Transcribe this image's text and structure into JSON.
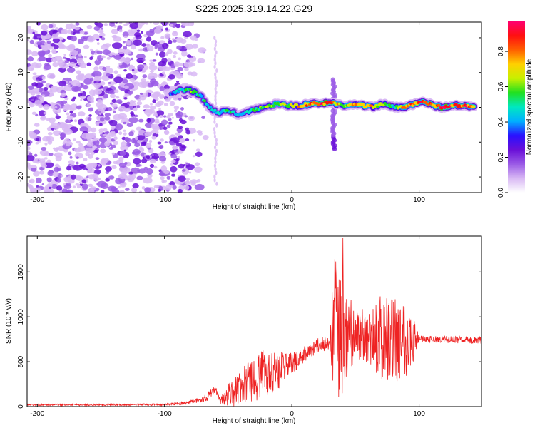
{
  "title": "S225.2025.319.14.22.G29",
  "chart_data": [
    {
      "type": "heatmap",
      "title": "S225.2025.319.14.22.G29",
      "xlabel": "Height of straight line (km)",
      "ylabel": "Frequency (Hz)",
      "xlim": [
        -208,
        149
      ],
      "ylim": [
        -24.5,
        24.5
      ],
      "x_ticks": [
        -200,
        -100,
        0,
        100
      ],
      "x_tick_labels": [
        "-200",
        "-100",
        "0",
        "100"
      ],
      "y_ticks": [
        -20,
        -10,
        0,
        10,
        20
      ],
      "y_tick_labels": [
        "-20",
        "-10",
        "0",
        "10",
        "20"
      ],
      "colorbar": {
        "label": "Normalized spectral amplitude",
        "range": [
          0,
          0.97
        ],
        "ticks": [
          0.0,
          0.2,
          0.4,
          0.6,
          0.8
        ],
        "tick_labels": [
          "0.0",
          "0.2",
          "0.4",
          "0.6",
          "0.8"
        ],
        "colormap": [
          "#ffffff",
          "#d8b8f4",
          "#9a5ae6",
          "#6a10d8",
          "#2a10ff",
          "#00b0ff",
          "#00e8c0",
          "#20e020",
          "#c8f000",
          "#ffd000",
          "#ff6000",
          "#ff1010",
          "#ff0070"
        ]
      },
      "noise_region_x": [
        -208,
        -90
      ],
      "ridge": [
        {
          "x": -95,
          "y": 3.5,
          "v": 0.35
        },
        {
          "x": -88,
          "y": 5.0,
          "v": 0.45
        },
        {
          "x": -80,
          "y": 5.0,
          "v": 0.6
        },
        {
          "x": -72,
          "y": 3.5,
          "v": 0.5
        },
        {
          "x": -65,
          "y": 0.0,
          "v": 0.45
        },
        {
          "x": -58,
          "y": -1.5,
          "v": 0.45
        },
        {
          "x": -50,
          "y": -1.0,
          "v": 0.5
        },
        {
          "x": -42,
          "y": -2.0,
          "v": 0.4
        },
        {
          "x": -35,
          "y": -1.5,
          "v": 0.45
        },
        {
          "x": -28,
          "y": -0.5,
          "v": 0.55
        },
        {
          "x": -20,
          "y": 0.0,
          "v": 0.6
        },
        {
          "x": -12,
          "y": 1.0,
          "v": 0.65
        },
        {
          "x": -4,
          "y": 0.5,
          "v": 0.6
        },
        {
          "x": 5,
          "y": 0.5,
          "v": 0.7
        },
        {
          "x": 14,
          "y": 1.0,
          "v": 0.8
        },
        {
          "x": 22,
          "y": 1.0,
          "v": 0.9
        },
        {
          "x": 30,
          "y": 1.5,
          "v": 0.85
        },
        {
          "x": 40,
          "y": 0.5,
          "v": 0.6
        },
        {
          "x": 48,
          "y": 1.0,
          "v": 0.7
        },
        {
          "x": 56,
          "y": 0.5,
          "v": 0.75
        },
        {
          "x": 64,
          "y": 0.0,
          "v": 0.7
        },
        {
          "x": 72,
          "y": 1.0,
          "v": 0.6
        },
        {
          "x": 80,
          "y": 0.0,
          "v": 0.45
        },
        {
          "x": 88,
          "y": 0.0,
          "v": 0.75
        },
        {
          "x": 96,
          "y": 1.0,
          "v": 0.8
        },
        {
          "x": 104,
          "y": 1.5,
          "v": 0.85
        },
        {
          "x": 112,
          "y": 0.5,
          "v": 0.8
        },
        {
          "x": 120,
          "y": 0.0,
          "v": 0.9
        },
        {
          "x": 128,
          "y": 0.5,
          "v": 0.8
        },
        {
          "x": 136,
          "y": 0.5,
          "v": 0.85
        },
        {
          "x": 144,
          "y": 0.0,
          "v": 0.8
        }
      ],
      "features": [
        {
          "x": 33,
          "y_from": -12,
          "y_to": 8,
          "note": "vertical streak"
        },
        {
          "x": -60,
          "y_from": -22,
          "y_to": 20,
          "note": "faint vertical streak"
        }
      ]
    },
    {
      "type": "line",
      "xlabel": "Height of straight line (km)",
      "ylabel": "SNR (10 * v/v)",
      "xlim": [
        -208,
        149
      ],
      "ylim": [
        0,
        1900
      ],
      "x_ticks": [
        -200,
        -100,
        0,
        100
      ],
      "x_tick_labels": [
        "-200",
        "-100",
        "0",
        "100"
      ],
      "y_ticks": [
        0,
        500,
        1000,
        1500
      ],
      "y_tick_labels": [
        "0",
        "500",
        "1000",
        "1500"
      ],
      "color": "#ee2222",
      "series": [
        {
          "name": "SNR envelope",
          "x": [
            -208,
            -150,
            -100,
            -80,
            -70,
            -64,
            -60,
            -56,
            -45,
            -30,
            -20,
            -10,
            0,
            10,
            20,
            30,
            33,
            36,
            40,
            44,
            50,
            60,
            70,
            80,
            90,
            95,
            100,
            120,
            149
          ],
          "y": [
            20,
            20,
            22,
            45,
            80,
            130,
            200,
            60,
            180,
            300,
            380,
            420,
            480,
            580,
            680,
            720,
            760,
            800,
            700,
            760,
            820,
            760,
            740,
            760,
            780,
            760,
            750,
            750,
            740
          ],
          "noise": [
            10,
            10,
            12,
            20,
            30,
            60,
            40,
            50,
            180,
            250,
            280,
            220,
            120,
            90,
            80,
            80,
            900,
            850,
            800,
            500,
            300,
            300,
            450,
            500,
            450,
            300,
            40,
            40,
            40
          ]
        }
      ]
    }
  ]
}
